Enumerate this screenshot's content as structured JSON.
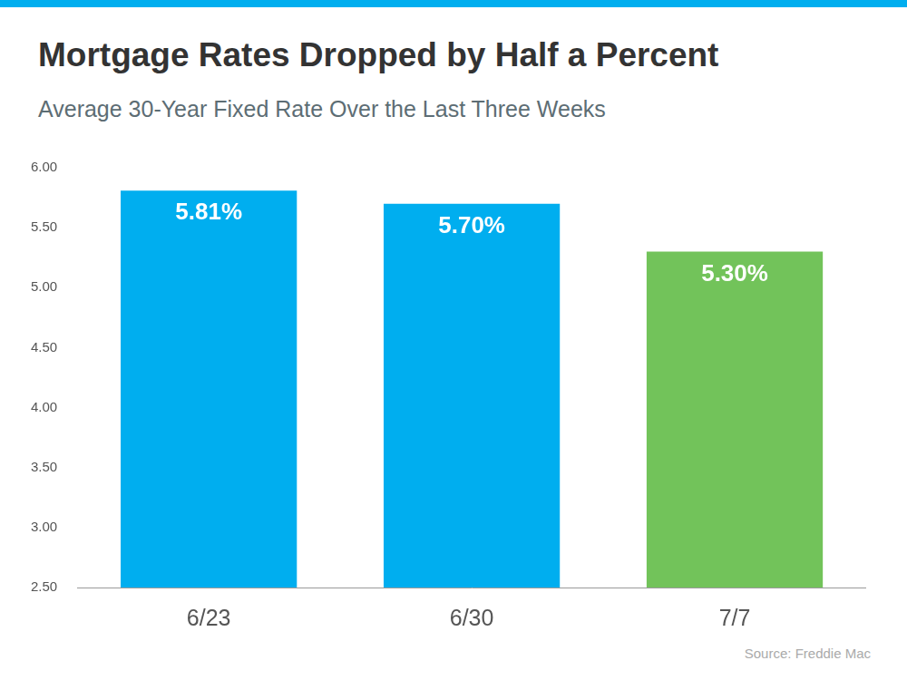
{
  "chart_data": {
    "type": "bar",
    "title": "Mortgage Rates Dropped by Half a Percent",
    "subtitle": "Average 30-Year Fixed Rate Over the Last Three Weeks",
    "source": "Source: Freddie Mac",
    "categories": [
      "6/23",
      "6/30",
      "7/7"
    ],
    "values": [
      5.81,
      5.7,
      5.3
    ],
    "value_labels": [
      "5.81%",
      "5.70%",
      "5.30%"
    ],
    "colors": [
      "#00aeef",
      "#00aeef",
      "#72c35a"
    ],
    "ylim": [
      2.5,
      6.0
    ],
    "yticks": [
      {
        "value": 2.5,
        "label": "2.50"
      },
      {
        "value": 3,
        "label": "3.00"
      },
      {
        "value": 3.5,
        "label": "3.50"
      },
      {
        "value": 4,
        "label": "4.00"
      },
      {
        "value": 4.5,
        "label": "4.50"
      },
      {
        "value": 5,
        "label": "5.00"
      },
      {
        "value": 5.5,
        "label": "5.50"
      },
      {
        "value": 6,
        "label": "6.00"
      }
    ],
    "grid": false,
    "data_labels": true
  }
}
